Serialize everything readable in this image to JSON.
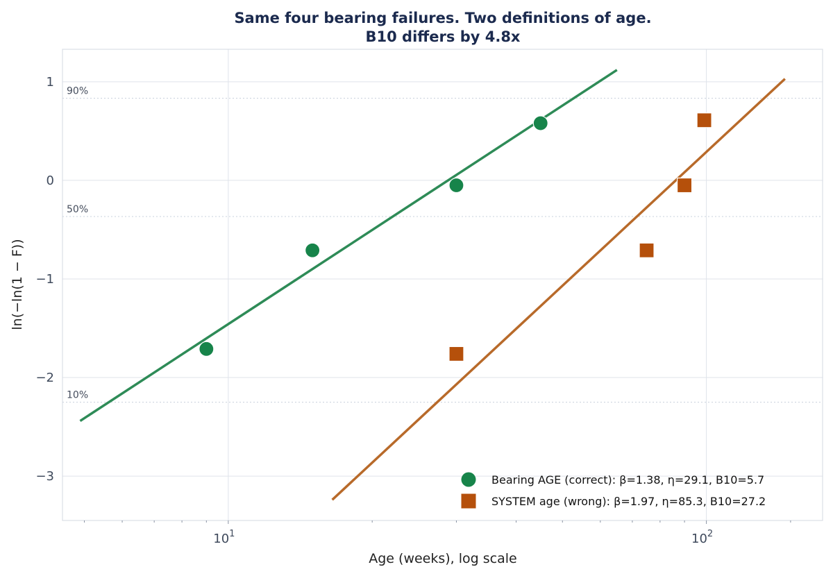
{
  "chart_data": {
    "type": "scatter",
    "title": "Same four bearing failures. Two definitions of age.",
    "subtitle": "B10 differs by 4.8x",
    "xlabel": "Age (weeks), log scale",
    "ylabel": "ln(−ln(1 − F))",
    "x_scale": "log",
    "xlim": [
      4.5,
      175
    ],
    "ylim": [
      -3.45,
      1.33
    ],
    "x_ticks": [
      {
        "value": 10,
        "base": "10",
        "exp": "1"
      },
      {
        "value": 100,
        "base": "10",
        "exp": "2"
      }
    ],
    "y_ticks": [
      {
        "value": 1,
        "label": "1"
      },
      {
        "value": 0,
        "label": "0"
      },
      {
        "value": -1,
        "label": "−1"
      },
      {
        "value": -2,
        "label": "−2"
      },
      {
        "value": -3,
        "label": "−3"
      }
    ],
    "grid": true,
    "reference_lines": [
      {
        "y": 0.834,
        "label": "90%"
      },
      {
        "y": -0.367,
        "label": "50%"
      },
      {
        "y": -2.25,
        "label": "10%"
      }
    ],
    "legend_position": "bottom-right",
    "series": [
      {
        "name": "Bearing AGE (correct): β=1.38, η=29.1, B10=5.7",
        "marker": "circle",
        "color": "#17844a",
        "line_color": "#2e8b57",
        "points": [
          {
            "x": 9.0,
            "y": -1.71
          },
          {
            "x": 15.0,
            "y": -0.71
          },
          {
            "x": 30.0,
            "y": -0.05
          },
          {
            "x": 45.0,
            "y": 0.58
          }
        ],
        "fit_line": [
          {
            "x": 4.9,
            "y": -2.44
          },
          {
            "x": 65.0,
            "y": 1.12
          }
        ]
      },
      {
        "name": "SYSTEM age (wrong): β=1.97, η=85.3, B10=27.2",
        "marker": "square",
        "color": "#b5500b",
        "line_color": "#b86a2a",
        "points": [
          {
            "x": 30.0,
            "y": -1.76
          },
          {
            "x": 75.0,
            "y": -0.71
          },
          {
            "x": 90.0,
            "y": -0.05
          },
          {
            "x": 99.0,
            "y": 0.61
          }
        ],
        "fit_line": [
          {
            "x": 16.5,
            "y": -3.24
          },
          {
            "x": 146.0,
            "y": 1.03
          }
        ]
      }
    ]
  }
}
